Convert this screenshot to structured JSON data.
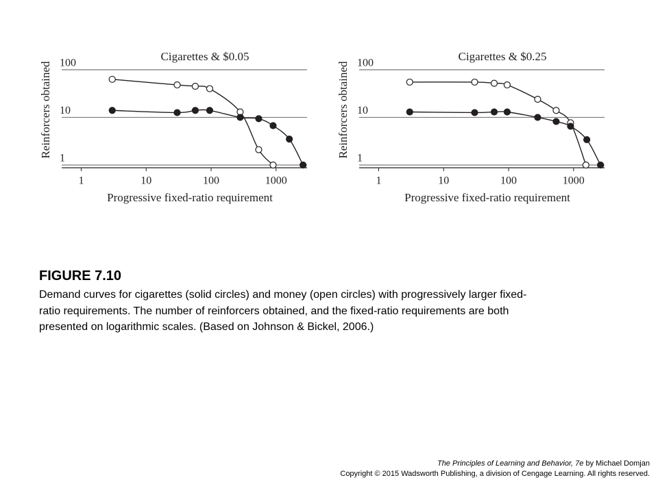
{
  "chart_data": [
    {
      "type": "scatter",
      "title": "Cigarettes & $0.05",
      "x_label": "Progressive fixed-ratio requirement",
      "y_label": "Reinforcers obtained",
      "xlog": true,
      "ylog": true,
      "xlim": [
        0.5,
        3000
      ],
      "ylim": [
        1,
        350
      ],
      "xticks": [
        1,
        10,
        100,
        1000
      ],
      "yticks": [
        1,
        10,
        100
      ],
      "grid": true,
      "fitted_curves": true,
      "series": [
        {
          "marker": "open",
          "color": "#231f20",
          "x": [
            3,
            30,
            57,
            95,
            280,
            540,
            900
          ],
          "values": [
            63,
            48,
            45,
            40,
            13,
            2.1,
            1
          ]
        },
        {
          "marker": "filled",
          "color": "#231f20",
          "x": [
            3,
            30,
            57,
            95,
            280,
            540,
            900,
            1600,
            2600
          ],
          "values": [
            14,
            12.6,
            14,
            14,
            10,
            9.4,
            6.7,
            3.5,
            1
          ]
        }
      ]
    },
    {
      "type": "scatter",
      "title": "Cigarettes & $0.25",
      "x_label": "Progressive fixed-ratio requirement",
      "y_label": "Reinforcers obtained",
      "xlog": true,
      "ylog": true,
      "xlim": [
        0.5,
        3000
      ],
      "ylim": [
        1,
        350
      ],
      "xticks": [
        1,
        10,
        100,
        1000
      ],
      "yticks": [
        1,
        10,
        100
      ],
      "grid": true,
      "fitted_curves": true,
      "series": [
        {
          "marker": "open",
          "color": "#231f20",
          "x": [
            3,
            30,
            60,
            95,
            280,
            540,
            900,
            1550
          ],
          "values": [
            55,
            55,
            52,
            48,
            24,
            14,
            7.7,
            1
          ]
        },
        {
          "marker": "filled",
          "color": "#231f20",
          "x": [
            3,
            30,
            60,
            95,
            280,
            540,
            900,
            1600,
            2600
          ],
          "values": [
            13,
            12.6,
            13,
            13,
            10,
            8.2,
            6.5,
            3.4,
            1
          ]
        }
      ]
    }
  ],
  "caption": {
    "heading": "FIGURE 7.10",
    "lines": [
      "Demand curves for cigarettes (solid circles) and money (open circles) with progressively larger fixed-",
      "ratio requirements. The number of reinforcers obtained, and the fixed-ratio requirements are both",
      "presented on logarithmic scales. (Based on Johnson & Bickel, 2006.)"
    ]
  },
  "footer": {
    "book_title": "The Principles of Learning and Behavior, 7e",
    "author": "by Michael Domjan",
    "copyright": "Copyright © 2015 Wadsworth Publishing, a division of Cengage Learning. All rights reserved."
  }
}
